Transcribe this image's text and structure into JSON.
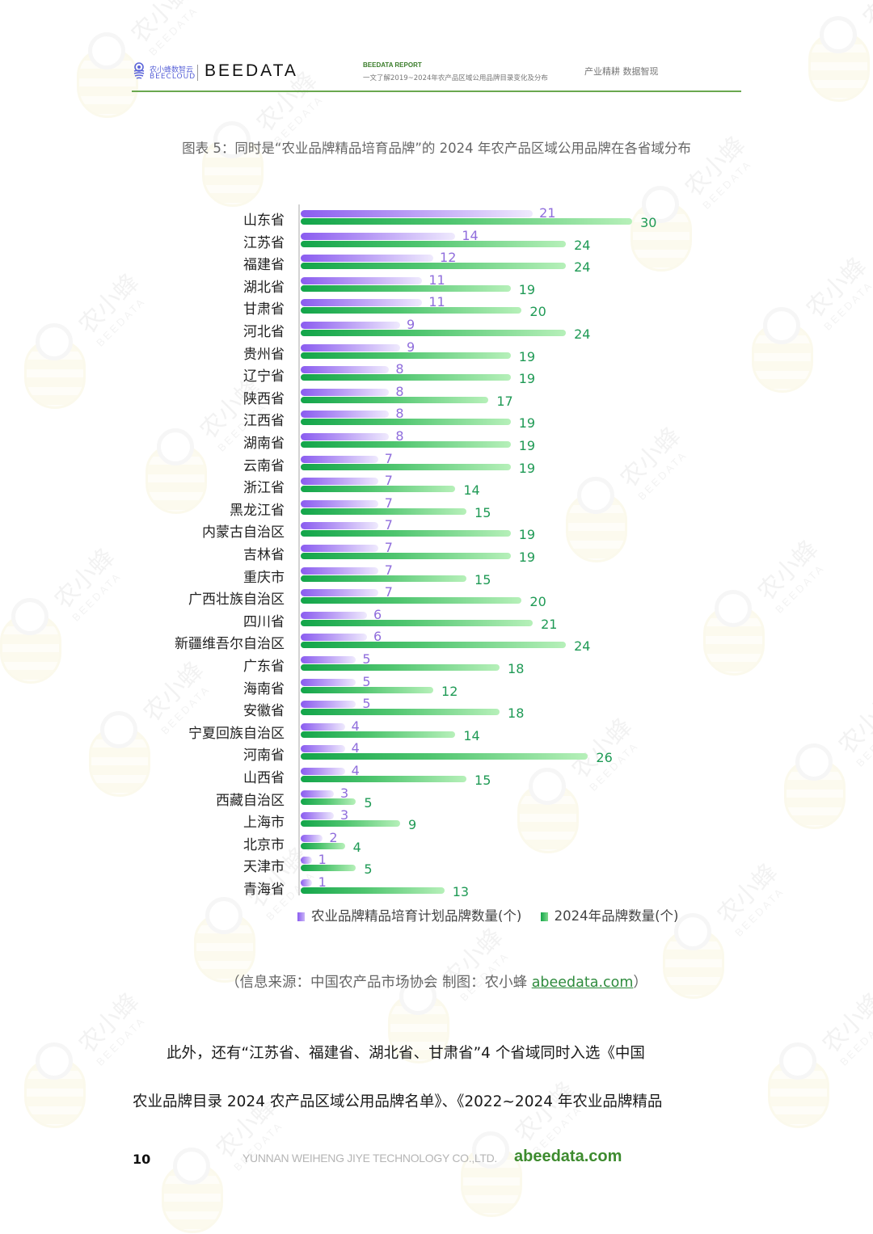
{
  "header": {
    "logo_cn": "农小蜂数智云",
    "logo_en": "BEECLOUD",
    "brand": "BEEDATA",
    "report_label": "BEEDATA REPORT",
    "report_subtitle": "一文了解2019~2024年农产品区域公用品牌目录变化及分布",
    "slogan": "产业精耕  数据智现"
  },
  "figure": {
    "title": "图表 5：同时是“农业品牌精品培育品牌”的 2024 年农产品区域公用品牌在各省域分布"
  },
  "colors": {
    "series1": "#8a5cf0",
    "series2": "#13a54a",
    "accent_line": "#6aa84f"
  },
  "chart_data": {
    "type": "bar",
    "orientation": "horizontal",
    "title": "同时是“农业品牌精品培育品牌”的 2024 年农产品区域公用品牌在各省域分布",
    "xlabel": "",
    "ylabel": "",
    "grid": false,
    "legend_position": "bottom",
    "categories": [
      "山东省",
      "江苏省",
      "福建省",
      "湖北省",
      "甘肃省",
      "河北省",
      "贵州省",
      "辽宁省",
      "陕西省",
      "江西省",
      "湖南省",
      "云南省",
      "浙江省",
      "黑龙江省",
      "内蒙古自治区",
      "吉林省",
      "重庆市",
      "广西壮族自治区",
      "四川省",
      "新疆维吾尔自治区",
      "广东省",
      "海南省",
      "安徽省",
      "宁夏回族自治区",
      "河南省",
      "山西省",
      "西藏自治区",
      "上海市",
      "北京市",
      "天津市",
      "青海省"
    ],
    "series": [
      {
        "name": "农业品牌精品培育计划品牌数量(个)",
        "values": [
          21,
          14,
          12,
          11,
          11,
          9,
          9,
          8,
          8,
          8,
          8,
          7,
          7,
          7,
          7,
          7,
          7,
          7,
          6,
          6,
          5,
          5,
          5,
          4,
          4,
          4,
          3,
          3,
          2,
          1,
          1
        ]
      },
      {
        "name": "2024年品牌数量(个)",
        "values": [
          30,
          24,
          24,
          19,
          20,
          24,
          19,
          19,
          17,
          19,
          19,
          19,
          14,
          15,
          19,
          19,
          15,
          20,
          21,
          24,
          18,
          12,
          18,
          14,
          26,
          15,
          5,
          9,
          4,
          5,
          13
        ]
      }
    ]
  },
  "legend": [
    {
      "label": "农业品牌精品培育计划品牌数量(个)"
    },
    {
      "label": "2024年品牌数量(个)"
    }
  ],
  "source": {
    "text": "（信息来源：中国农产品市场协会    制图：农小蜂  ",
    "link": "abeedata.com",
    "close": "）"
  },
  "body": {
    "line1": "此外，还有“江苏省、福建省、湖北省、甘肃省”4 个省域同时入选《中国",
    "line2": "农业品牌目录 2024 农产品区域公用品牌名单》、《2022~2024 年农业品牌精品"
  },
  "footer": {
    "page_number": "10",
    "company": "YUNNAN WEIHENG JIYE TECHNOLOGY CO.,LTD.",
    "site": "abeedata.com"
  },
  "watermark": {
    "cn": "农小蜂",
    "en": "BEEDATA"
  }
}
